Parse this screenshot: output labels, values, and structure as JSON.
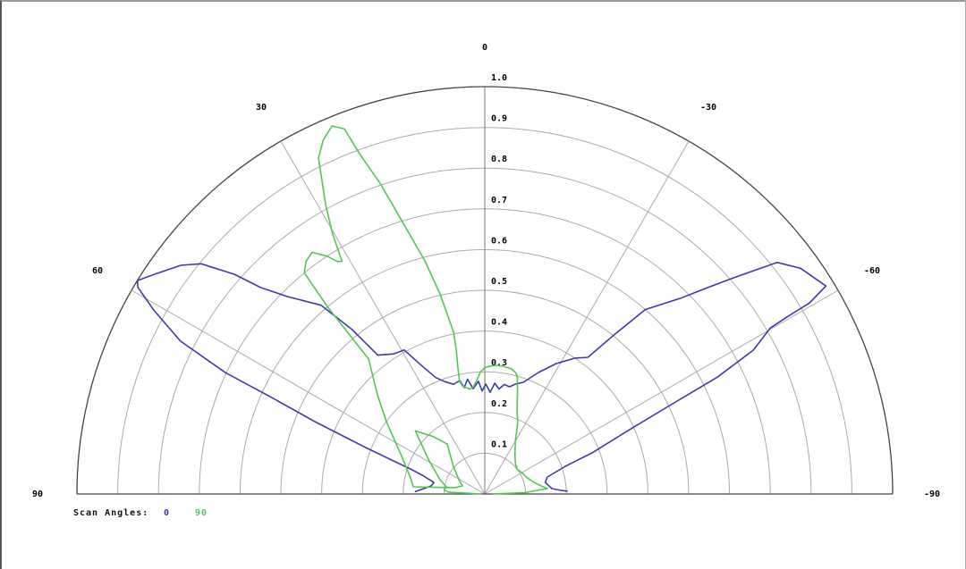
{
  "window": {
    "background": "#ffffff",
    "border_color": "#9a9a9a"
  },
  "legend": {
    "label": "Scan Angles:",
    "items": [
      {
        "value": "0",
        "color": "#3b3bac"
      },
      {
        "value": "90",
        "color": "#4ec94e"
      }
    ]
  },
  "chart_data": {
    "type": "line",
    "subtype": "half-polar-radiation-pattern",
    "title": "",
    "angle_unit": "degrees",
    "angle_range": [
      -90,
      90
    ],
    "r_range": [
      0,
      1.0
    ],
    "grid_on": true,
    "legend_position": "bottom-left",
    "radius_tick_labels": [
      "0.1",
      "0.2",
      "0.3",
      "0.4",
      "0.5",
      "0.6",
      "0.7",
      "0.8",
      "0.9",
      "1.0"
    ],
    "radius_ticks": [
      0.1,
      0.2,
      0.3,
      0.4,
      0.5,
      0.6,
      0.7,
      0.8,
      0.9,
      1.0
    ],
    "angle_tick_labels": [
      "0",
      "30",
      "-30",
      "60",
      "-60",
      "90",
      "-90"
    ],
    "angle_ticks": [
      0,
      30,
      -30,
      60,
      -60,
      90,
      -90
    ],
    "spoke_angles": [
      -60,
      -30,
      0,
      30,
      60
    ],
    "colors": {
      "ring_grid": "#aaaaaa",
      "spoke_grid": "#aaaaaa",
      "outer_ring": "#444444",
      "axis_vertical": "#777777",
      "baseline": "#444444",
      "tick_text": "#000000"
    },
    "series": [
      {
        "name": "0",
        "color": "#3b3bac",
        "points_theta_r": [
          [
            88,
            0.17
          ],
          [
            85,
            0.15
          ],
          [
            81.5,
            0.133
          ],
          [
            77.2,
            0.128
          ],
          [
            73.3,
            0.16
          ],
          [
            71.2,
            0.197
          ],
          [
            70.2,
            0.233
          ],
          [
            68.6,
            0.318
          ],
          [
            66.9,
            0.453
          ],
          [
            65.6,
            0.578
          ],
          [
            64.9,
            0.702
          ],
          [
            63.3,
            0.835
          ],
          [
            60.9,
            0.929
          ],
          [
            59.2,
            0.99
          ],
          [
            58.4,
            1.0
          ],
          [
            56.4,
            0.974
          ],
          [
            53.0,
            0.933
          ],
          [
            50.9,
            0.896
          ],
          [
            48.7,
            0.817
          ],
          [
            47.3,
            0.747
          ],
          [
            44.9,
            0.684
          ],
          [
            40.9,
            0.613
          ],
          [
            38.9,
            0.52
          ],
          [
            37.6,
            0.43
          ],
          [
            33,
            0.41
          ],
          [
            29.2,
            0.405
          ],
          [
            26.1,
            0.35
          ],
          [
            22.8,
            0.31
          ],
          [
            19.7,
            0.293
          ],
          [
            15.9,
            0.28
          ],
          [
            12.4,
            0.285
          ],
          [
            10.9,
            0.266
          ],
          [
            8.6,
            0.285
          ],
          [
            6.3,
            0.26
          ],
          [
            3.2,
            0.277
          ],
          [
            1.5,
            0.253
          ],
          [
            -0.5,
            0.27
          ],
          [
            -3,
            0.25
          ],
          [
            -5.1,
            0.273
          ],
          [
            -7.7,
            0.26
          ],
          [
            -10.1,
            0.273
          ],
          [
            -13,
            0.27
          ],
          [
            -15.5,
            0.28
          ],
          [
            -19,
            0.29
          ],
          [
            -23.8,
            0.326
          ],
          [
            -28.7,
            0.365
          ],
          [
            -33.5,
            0.4
          ],
          [
            -37,
            0.42
          ],
          [
            -39,
            0.5
          ],
          [
            -41,
            0.6
          ],
          [
            -45,
            0.68
          ],
          [
            -47,
            0.74
          ],
          [
            -49,
            0.81
          ],
          [
            -51.6,
            0.915
          ],
          [
            -54.4,
            0.952
          ],
          [
            -58.6,
            0.98
          ],
          [
            -59.5,
            0.924
          ],
          [
            -59.6,
            0.859
          ],
          [
            -59.8,
            0.81
          ],
          [
            -61.8,
            0.747
          ],
          [
            -63.3,
            0.638
          ],
          [
            -64.3,
            0.511
          ],
          [
            -66.1,
            0.384
          ],
          [
            -69,
            0.282
          ],
          [
            -71,
            0.209
          ],
          [
            -74.8,
            0.159
          ],
          [
            -79.2,
            0.151
          ],
          [
            -85.4,
            0.165
          ],
          [
            -87.3,
            0.187
          ],
          [
            -88,
            0.202
          ]
        ]
      },
      {
        "name": "90",
        "color": "#4ec94e",
        "points_theta_r": [
          [
            90,
            0.01
          ],
          [
            87,
            0.09
          ],
          [
            84,
            0.1
          ],
          [
            79.5,
            0.096
          ],
          [
            72.3,
            0.115
          ],
          [
            58.9,
            0.16
          ],
          [
            47.7,
            0.23
          ],
          [
            42,
            0.19
          ],
          [
            36.9,
            0.153
          ],
          [
            48.5,
            0.103
          ],
          [
            63.4,
            0.069
          ],
          [
            70.2,
            0.058
          ],
          [
            78,
            0.075
          ],
          [
            84.3,
            0.176
          ],
          [
            76.1,
            0.19
          ],
          [
            64.2,
            0.23
          ],
          [
            53.6,
            0.3
          ],
          [
            47.2,
            0.359
          ],
          [
            40.7,
            0.437
          ],
          [
            40.0,
            0.6
          ],
          [
            39.2,
            0.7
          ],
          [
            37.5,
            0.72
          ],
          [
            35.5,
            0.729
          ],
          [
            33.5,
            0.7
          ],
          [
            32.3,
            0.675
          ],
          [
            31.5,
            0.67
          ],
          [
            30.3,
            0.74
          ],
          [
            28.8,
            0.81
          ],
          [
            26.3,
            0.92
          ],
          [
            24.5,
            0.955
          ],
          [
            22.5,
            0.978
          ],
          [
            21.0,
            0.96
          ],
          [
            20.2,
            0.89
          ],
          [
            18.6,
            0.805
          ],
          [
            16.8,
            0.697
          ],
          [
            14.4,
            0.591
          ],
          [
            12.6,
            0.503
          ],
          [
            10.9,
            0.404
          ],
          [
            11.2,
            0.36
          ],
          [
            12.0,
            0.316
          ],
          [
            12.6,
            0.283
          ],
          [
            11.5,
            0.27
          ],
          [
            10,
            0.265
          ],
          [
            8,
            0.26
          ],
          [
            6,
            0.265
          ],
          [
            4,
            0.28
          ],
          [
            2,
            0.3
          ],
          [
            0,
            0.31
          ],
          [
            -2,
            0.314
          ],
          [
            -5,
            0.317
          ],
          [
            -8,
            0.317
          ],
          [
            -12,
            0.314
          ],
          [
            -14,
            0.308
          ],
          [
            -15.4,
            0.3
          ],
          [
            -18,
            0.26
          ],
          [
            -21,
            0.22
          ],
          [
            -24.6,
            0.195
          ],
          [
            -30,
            0.15
          ],
          [
            -38,
            0.12
          ],
          [
            -46,
            0.105
          ],
          [
            -52.9,
            0.1
          ],
          [
            -60,
            0.105
          ],
          [
            -68,
            0.11
          ],
          [
            -76.7,
            0.124
          ],
          [
            -82,
            0.14
          ],
          [
            -85,
            0.154
          ],
          [
            -88,
            0.1
          ],
          [
            -90,
            0.02
          ]
        ]
      }
    ]
  }
}
